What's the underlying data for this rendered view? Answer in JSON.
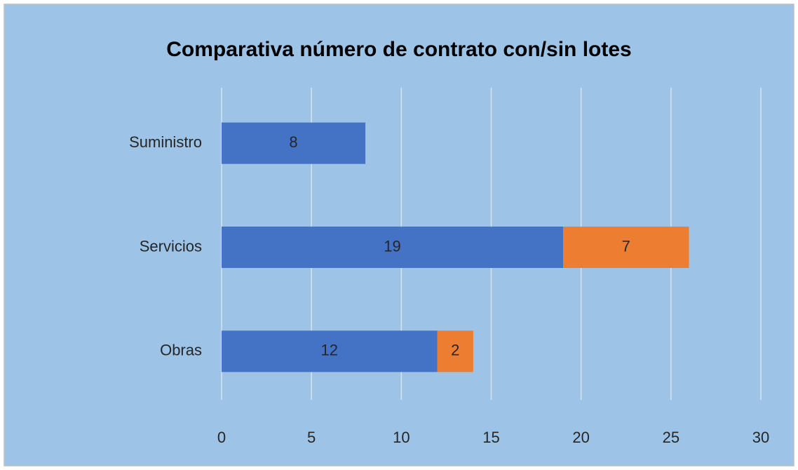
{
  "chart_data": {
    "type": "stacked_barh",
    "title": "Comparativa número de contrato con/sin lotes",
    "categories": [
      "Suministro",
      "Servicios",
      "Obras"
    ],
    "series": [
      {
        "color": "#4472c4",
        "values": [
          8,
          19,
          12
        ]
      },
      {
        "color": "#ed7d31",
        "values": [
          null,
          7,
          2
        ]
      }
    ],
    "xlim": [
      0,
      30
    ],
    "xticks": [
      0,
      5,
      10,
      15,
      20,
      25,
      30
    ],
    "grid": true
  }
}
